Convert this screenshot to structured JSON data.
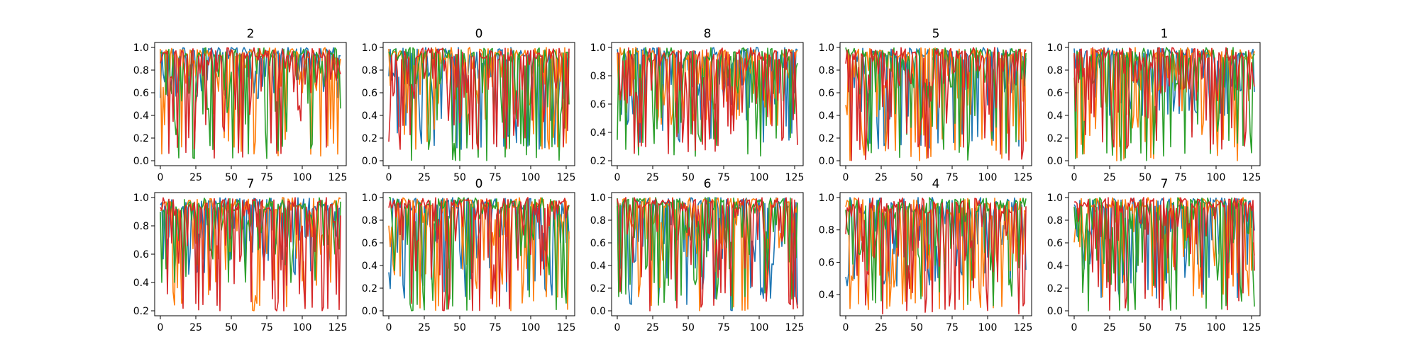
{
  "figure": {
    "colors": [
      "#1f77b4",
      "#ff7f0e",
      "#2ca02c",
      "#d62728"
    ]
  },
  "chart_data": [
    {
      "type": "line",
      "title": "2",
      "xlim": [
        0,
        127
      ],
      "ylim": [
        0.0,
        1.0
      ],
      "xticks": [
        0,
        25,
        50,
        75,
        100,
        125
      ],
      "yticks": [
        0.0,
        0.2,
        0.4,
        0.6,
        0.8,
        1.0
      ],
      "ytick_labels": [
        "0.0",
        "0.2",
        "0.4",
        "0.6",
        "0.8",
        "1.0"
      ],
      "series_count": 4,
      "series_min": [
        0.55,
        0.04,
        0.02,
        0.02
      ],
      "n_points": 128
    },
    {
      "type": "line",
      "title": "0",
      "xlim": [
        0,
        127
      ],
      "ylim": [
        0.0,
        1.0
      ],
      "xticks": [
        0,
        25,
        50,
        75,
        100,
        125
      ],
      "yticks": [
        0.0,
        0.2,
        0.4,
        0.6,
        0.8,
        1.0
      ],
      "ytick_labels": [
        "0.0",
        "0.2",
        "0.4",
        "0.6",
        "0.8",
        "1.0"
      ],
      "series_count": 4,
      "series_min": [
        0.1,
        0.1,
        0.0,
        0.1
      ],
      "n_points": 128
    },
    {
      "type": "line",
      "title": "8",
      "xlim": [
        0,
        127
      ],
      "ylim": [
        0.2,
        1.0
      ],
      "xticks": [
        0,
        25,
        50,
        75,
        100,
        125
      ],
      "yticks": [
        0.2,
        0.4,
        0.6,
        0.8,
        1.0
      ],
      "ytick_labels": [
        "0.2",
        "0.4",
        "0.6",
        "0.8",
        "1.0"
      ],
      "series_count": 4,
      "series_min": [
        0.33,
        0.45,
        0.23,
        0.25
      ],
      "n_points": 128
    },
    {
      "type": "line",
      "title": "5",
      "xlim": [
        0,
        127
      ],
      "ylim": [
        0.0,
        1.0
      ],
      "xticks": [
        0,
        25,
        50,
        75,
        100,
        125
      ],
      "yticks": [
        0.0,
        0.2,
        0.4,
        0.6,
        0.8,
        1.0
      ],
      "ytick_labels": [
        "0.0",
        "0.2",
        "0.4",
        "0.6",
        "0.8",
        "1.0"
      ],
      "series_count": 4,
      "series_min": [
        0.1,
        0.0,
        0.0,
        0.0
      ],
      "n_points": 128
    },
    {
      "type": "line",
      "title": "1",
      "xlim": [
        0,
        127
      ],
      "ylim": [
        0.0,
        1.0
      ],
      "xticks": [
        0,
        25,
        50,
        75,
        100,
        125
      ],
      "yticks": [
        0.0,
        0.2,
        0.4,
        0.6,
        0.8,
        1.0
      ],
      "ytick_labels": [
        "0.0",
        "0.2",
        "0.4",
        "0.6",
        "0.8",
        "1.0"
      ],
      "series_count": 4,
      "series_min": [
        0.4,
        0.0,
        0.0,
        0.1
      ],
      "n_points": 128
    },
    {
      "type": "line",
      "title": "7",
      "xlim": [
        0,
        127
      ],
      "ylim": [
        0.2,
        1.0
      ],
      "xticks": [
        0,
        25,
        50,
        75,
        100,
        125
      ],
      "yticks": [
        0.2,
        0.4,
        0.6,
        0.8,
        1.0
      ],
      "ytick_labels": [
        "0.2",
        "0.4",
        "0.6",
        "0.8",
        "1.0"
      ],
      "series_count": 4,
      "series_min": [
        0.45,
        0.2,
        0.4,
        0.2
      ],
      "n_points": 128
    },
    {
      "type": "line",
      "title": "0",
      "xlim": [
        0,
        127
      ],
      "ylim": [
        0.0,
        1.0
      ],
      "xticks": [
        0,
        25,
        50,
        75,
        100,
        125
      ],
      "yticks": [
        0.0,
        0.2,
        0.4,
        0.6,
        0.8,
        1.0
      ],
      "ytick_labels": [
        "0.0",
        "0.2",
        "0.4",
        "0.6",
        "0.8",
        "1.0"
      ],
      "series_count": 4,
      "series_min": [
        0.1,
        0.0,
        0.0,
        0.0
      ],
      "n_points": 128
    },
    {
      "type": "line",
      "title": "6",
      "xlim": [
        0,
        127
      ],
      "ylim": [
        0.0,
        1.0
      ],
      "xticks": [
        0,
        25,
        50,
        75,
        100,
        125
      ],
      "yticks": [
        0.0,
        0.2,
        0.4,
        0.6,
        0.8,
        1.0
      ],
      "ytick_labels": [
        "0.0",
        "0.2",
        "0.4",
        "0.6",
        "0.8",
        "1.0"
      ],
      "series_count": 4,
      "series_min": [
        0.0,
        0.0,
        0.0,
        0.0
      ],
      "n_points": 128
    },
    {
      "type": "line",
      "title": "4",
      "xlim": [
        0,
        127
      ],
      "ylim": [
        0.3,
        1.0
      ],
      "xticks": [
        0,
        25,
        50,
        75,
        100,
        125
      ],
      "yticks": [
        0.4,
        0.6,
        0.8,
        1.0
      ],
      "ytick_labels": [
        "0.4",
        "0.6",
        "0.8",
        "1.0"
      ],
      "series_count": 4,
      "series_min": [
        0.45,
        0.3,
        0.33,
        0.28
      ],
      "n_points": 128
    },
    {
      "type": "line",
      "title": "7",
      "xlim": [
        0,
        127
      ],
      "ylim": [
        0.0,
        1.0
      ],
      "xticks": [
        0,
        25,
        50,
        75,
        100,
        125
      ],
      "yticks": [
        0.0,
        0.2,
        0.4,
        0.6,
        0.8,
        1.0
      ],
      "ytick_labels": [
        "0.0",
        "0.2",
        "0.4",
        "0.6",
        "0.8",
        "1.0"
      ],
      "series_count": 4,
      "series_min": [
        0.1,
        0.1,
        0.0,
        0.0
      ],
      "n_points": 128
    }
  ]
}
